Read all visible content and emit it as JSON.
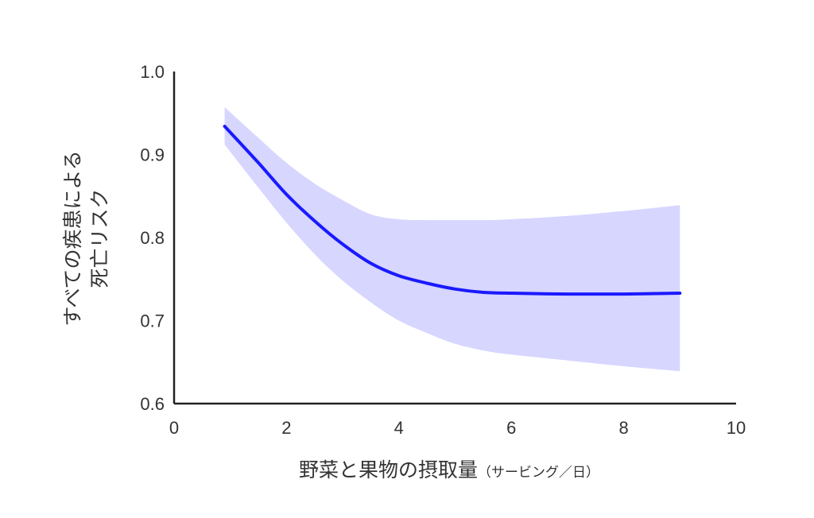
{
  "chart_data": {
    "type": "line",
    "xlabel_main": "野菜と果物の摂取量",
    "xlabel_unit": "（サービング／日）",
    "ylabel_line1": "すべての疾患による",
    "ylabel_line2": "死亡リスク",
    "xlim": [
      0,
      10
    ],
    "ylim": [
      0.6,
      1.0
    ],
    "x_ticks": [
      "0",
      "2",
      "4",
      "6",
      "8",
      "10"
    ],
    "y_ticks": [
      "0.6",
      "0.7",
      "0.8",
      "0.9",
      "1.0"
    ],
    "grid": false,
    "line_color": "#1a1aff",
    "band_color": "#d6d6ff",
    "series": [
      {
        "x": [
          0.9,
          1.5,
          2.0,
          2.5,
          3.0,
          3.5,
          4.0,
          4.5,
          5.0,
          5.5,
          6.0,
          7.0,
          8.0,
          9.0
        ],
        "y": [
          0.934,
          0.89,
          0.852,
          0.82,
          0.792,
          0.769,
          0.754,
          0.745,
          0.738,
          0.734,
          0.733,
          0.732,
          0.732,
          0.733
        ],
        "lower": [
          0.912,
          0.86,
          0.818,
          0.78,
          0.748,
          0.722,
          0.7,
          0.685,
          0.672,
          0.664,
          0.659,
          0.652,
          0.645,
          0.639
        ],
        "upper": [
          0.957,
          0.92,
          0.89,
          0.865,
          0.845,
          0.828,
          0.822,
          0.821,
          0.821,
          0.821,
          0.822,
          0.826,
          0.832,
          0.839
        ]
      }
    ]
  }
}
